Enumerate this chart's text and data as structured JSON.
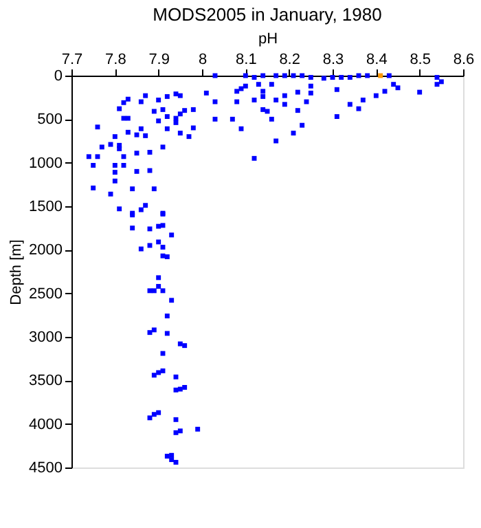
{
  "chart_data": {
    "type": "scatter",
    "title": "MODS2005 in January, 1980",
    "xlabel": "pH",
    "ylabel": "Depth [m]",
    "xlim": [
      7.7,
      8.6
    ],
    "xticks": [
      7.7,
      7.8,
      7.9,
      8,
      8.1,
      8.2,
      8.3,
      8.4,
      8.5,
      8.6
    ],
    "ylim": [
      4500,
      0
    ],
    "yticks": [
      0,
      500,
      1000,
      1500,
      2000,
      2500,
      3000,
      3500,
      4000,
      4500
    ],
    "grid": false,
    "legend": false,
    "marker": "square",
    "series": [
      {
        "color": "#0000ff",
        "x": [
          8.03,
          8.1,
          8.12,
          8.14,
          8.17,
          8.19,
          8.21,
          8.23,
          8.25,
          8.28,
          8.3,
          8.32,
          8.34,
          8.36,
          8.38,
          8.43,
          8.54,
          8.55,
          8.54,
          8.01,
          8.03,
          8.03,
          8.07,
          8.09,
          8.08,
          8.08,
          8.09,
          8.1,
          8.12,
          8.13,
          8.14,
          8.14,
          8.14,
          8.15,
          8.16,
          8.17,
          8.17,
          8.12,
          8.16,
          8.19,
          8.19,
          8.21,
          8.22,
          8.23,
          8.24,
          8.25,
          8.31,
          8.34,
          8.36,
          8.37,
          8.4,
          8.42,
          8.44,
          8.45,
          8.5,
          8.31,
          8.25,
          8.22,
          7.76,
          7.74,
          7.75,
          7.75,
          7.76,
          7.77,
          7.79,
          7.79,
          7.8,
          7.81,
          7.81,
          7.81,
          7.82,
          7.82,
          7.82,
          7.82,
          7.83,
          7.83,
          7.83,
          7.8,
          7.8,
          7.8,
          7.81,
          7.84,
          7.84,
          7.85,
          7.85,
          7.85,
          7.86,
          7.86,
          7.86,
          7.87,
          7.87,
          7.87,
          7.88,
          7.88,
          7.89,
          7.89,
          7.9,
          7.9,
          7.91,
          7.91,
          7.91,
          7.92,
          7.92,
          7.92,
          7.94,
          7.94,
          7.94,
          7.95,
          7.95,
          7.95,
          7.96,
          7.97,
          7.98,
          7.98,
          7.84,
          7.91,
          7.84,
          7.88,
          7.9,
          7.91,
          7.93,
          7.86,
          7.88,
          7.9,
          7.91,
          7.91,
          7.92,
          7.9,
          7.88,
          7.89,
          7.9,
          7.91,
          7.93,
          7.92,
          7.88,
          7.89,
          7.92,
          7.95,
          7.96,
          7.91,
          7.89,
          7.9,
          7.91,
          7.94,
          7.94,
          7.95,
          7.96,
          7.88,
          7.89,
          7.9,
          7.94,
          7.94,
          7.95,
          7.99,
          7.92,
          7.93,
          7.93,
          7.94
        ],
        "values": [
          0,
          0,
          20,
          0,
          0,
          0,
          0,
          0,
          20,
          30,
          20,
          20,
          20,
          0,
          0,
          0,
          20,
          70,
          100,
          200,
          300,
          500,
          500,
          610,
          180,
          300,
          150,
          120,
          280,
          100,
          180,
          240,
          390,
          410,
          500,
          280,
          750,
          950,
          100,
          230,
          330,
          660,
          400,
          570,
          300,
          120,
          470,
          330,
          380,
          280,
          230,
          180,
          100,
          140,
          190,
          160,
          200,
          190,
          590,
          930,
          1030,
          1290,
          930,
          820,
          790,
          1360,
          700,
          380,
          800,
          840,
          310,
          490,
          930,
          1030,
          270,
          490,
          650,
          1030,
          1110,
          1210,
          1530,
          1300,
          1600,
          890,
          1100,
          680,
          300,
          610,
          1540,
          230,
          690,
          1490,
          880,
          1090,
          410,
          1300,
          280,
          520,
          390,
          820,
          1590,
          240,
          470,
          610,
          210,
          490,
          540,
          440,
          660,
          230,
          400,
          700,
          390,
          600,
          1580,
          1580,
          1750,
          1760,
          1730,
          1720,
          1830,
          1990,
          1950,
          1910,
          1970,
          2070,
          2080,
          2320,
          2470,
          2470,
          2420,
          2470,
          2580,
          2760,
          2950,
          2920,
          2960,
          3080,
          3100,
          3190,
          3440,
          3410,
          3390,
          3460,
          3610,
          3600,
          3580,
          3930,
          3890,
          3870,
          3950,
          4100,
          4080,
          4060,
          4370,
          4360,
          4410,
          4440
        ]
      },
      {
        "color": "#ff9900",
        "x": [
          8.41
        ],
        "values": [
          0
        ]
      }
    ]
  }
}
